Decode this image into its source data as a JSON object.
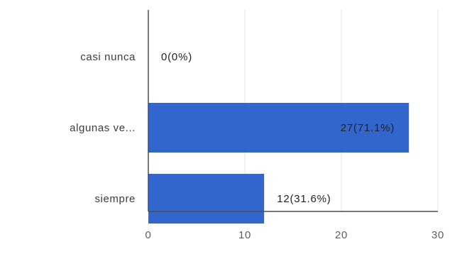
{
  "chart_data": {
    "type": "bar",
    "orientation": "horizontal",
    "categories": [
      "casi nunca",
      "algunas ve...",
      "siempre"
    ],
    "values": [
      0,
      27,
      12
    ],
    "data_labels": [
      "0(0%)",
      "27(71.1%)",
      "12(31.6%)"
    ],
    "x_ticks": [
      0,
      10,
      20,
      30
    ],
    "xlim": [
      0,
      30
    ],
    "grid": true,
    "legend": "none",
    "bar_color": "#3366cc",
    "grid_color": "#e3e3e3",
    "axis_color": "#4d4d4d"
  }
}
